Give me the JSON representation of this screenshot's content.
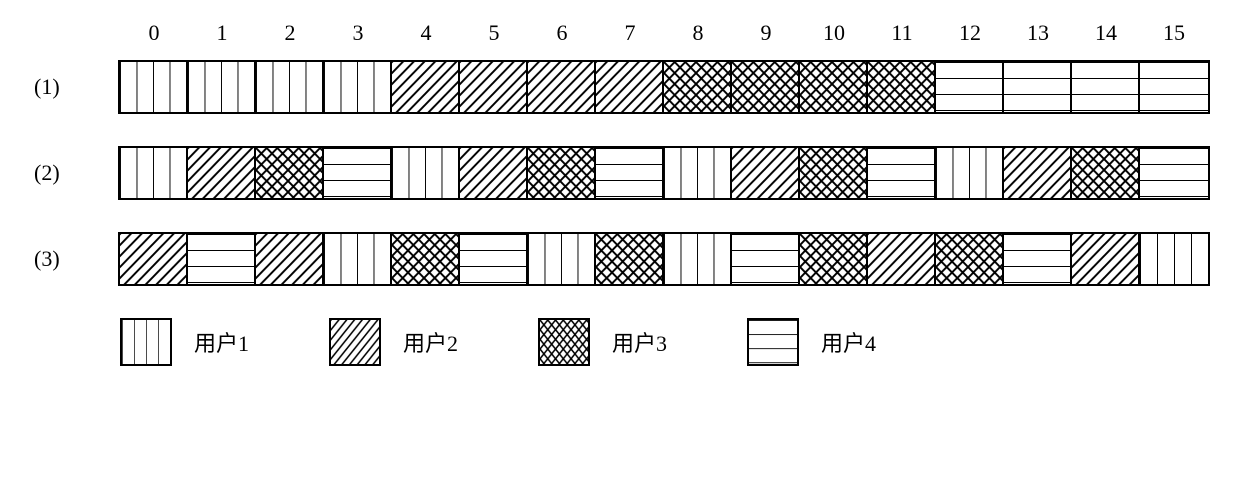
{
  "columns": [
    "0",
    "1",
    "2",
    "3",
    "4",
    "5",
    "6",
    "7",
    "8",
    "9",
    "10",
    "11",
    "12",
    "13",
    "14",
    "15"
  ],
  "row_labels": [
    "(1)",
    "(2)",
    "(3)"
  ],
  "rows": [
    [
      "u1",
      "u1",
      "u1",
      "u1",
      "u2",
      "u2",
      "u2",
      "u2",
      "u3",
      "u3",
      "u3",
      "u3",
      "u4",
      "u4",
      "u4",
      "u4"
    ],
    [
      "u1",
      "u2",
      "u3",
      "u4",
      "u1",
      "u2",
      "u3",
      "u4",
      "u1",
      "u2",
      "u3",
      "u4",
      "u1",
      "u2",
      "u3",
      "u4"
    ],
    [
      "u2",
      "u4",
      "u2",
      "u1",
      "u3",
      "u4",
      "u1",
      "u3",
      "u1",
      "u4",
      "u3",
      "u2",
      "u3",
      "u4",
      "u2",
      "u1"
    ]
  ],
  "legend": [
    {
      "key": "u1",
      "label": "用户1"
    },
    {
      "key": "u2",
      "label": "用户2"
    },
    {
      "key": "u3",
      "label": "用户3"
    },
    {
      "key": "u4",
      "label": "用户4"
    }
  ],
  "patterns": {
    "u1": {
      "type": "vertical",
      "stroke": "#000000",
      "spacing": 17,
      "width": 2
    },
    "u2": {
      "type": "diagonal",
      "stroke": "#000000",
      "spacing": 11,
      "width": 2
    },
    "u3": {
      "type": "crosshatch",
      "stroke": "#000000",
      "spacing": 11,
      "width": 2
    },
    "u4": {
      "type": "horizontal",
      "stroke": "#000000",
      "spacing": 16,
      "width": 2
    }
  },
  "colors": {
    "background": "#ffffff",
    "line": "#000000"
  },
  "fontsize": 22
}
